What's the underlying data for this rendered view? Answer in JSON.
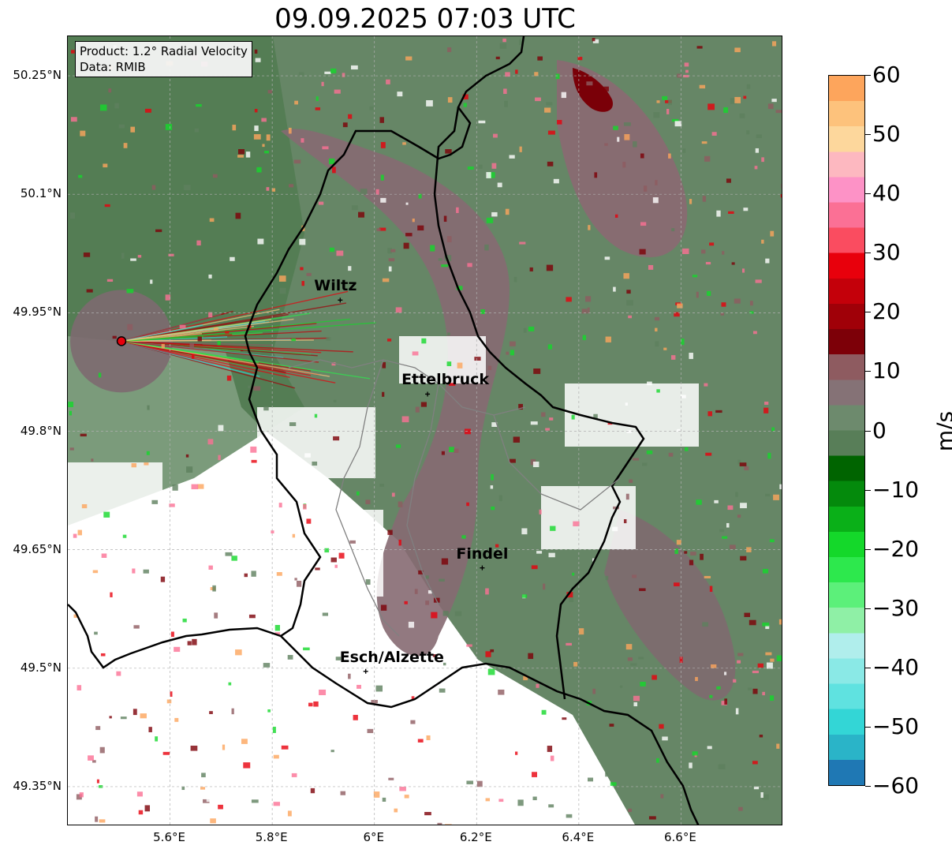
{
  "title": "09.09.2025 07:03 UTC",
  "info": {
    "product": "Product: 1.2° Radial Velocity",
    "data": "Data: RMIB"
  },
  "lat_ticks": [
    "50.25°N",
    "50.1°N",
    "49.95°N",
    "49.8°N",
    "49.65°N",
    "49.5°N",
    "49.35°N"
  ],
  "lon_ticks": [
    "5.6°E",
    "5.8°E",
    "6°E",
    "6.2°E",
    "6.4°E",
    "6.6°E"
  ],
  "colorbar": {
    "unit": "m/s",
    "min": -60,
    "max": 60,
    "tick_labels": [
      "60",
      "50",
      "40",
      "30",
      "20",
      "10",
      "0",
      "−10",
      "−20",
      "−30",
      "−40",
      "−50",
      "−60"
    ],
    "colors": [
      "#1f78b4",
      "#2ab4c8",
      "#33d6d6",
      "#5fe2e0",
      "#8ae9e6",
      "#b0eeec",
      "#8ff0a6",
      "#5cf07a",
      "#2de84d",
      "#14d82a",
      "#0ab018",
      "#048a0c",
      "#006400",
      "#587e58",
      "#6d8a6d",
      "#857276",
      "#8e5b60",
      "#7d0008",
      "#a00008",
      "#c4000a",
      "#e8000c",
      "#fa4c60",
      "#fb7095",
      "#fd92c6",
      "#fdb8c0",
      "#fdd79c",
      "#fdc27c",
      "#fda55c"
    ]
  },
  "map": {
    "lon_range": [
      5.4,
      6.8
    ],
    "lat_range": [
      49.3,
      50.3
    ],
    "radar_site": {
      "lon": 5.505,
      "lat": 49.914
    },
    "cities": [
      {
        "name": "Wiltz",
        "lon": 5.933,
        "lat": 49.966
      },
      {
        "name": "Ettelbruck",
        "lon": 6.104,
        "lat": 49.847
      },
      {
        "name": "Findel",
        "lon": 6.211,
        "lat": 49.627
      },
      {
        "name": "Esch/Alzette",
        "lon": 5.983,
        "lat": 49.496
      }
    ]
  }
}
